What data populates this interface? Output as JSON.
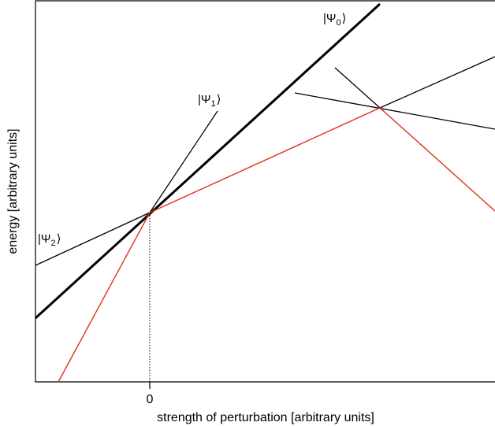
{
  "xlabel": "strength of perturbation [arbitrary units]",
  "ylabel": "energy [arbitrary units]",
  "x_tick": "0",
  "states": {
    "psi0": {
      "label_left": "|Ψ",
      "subscript": "0",
      "label_right": "⟩"
    },
    "psi1": {
      "label_left": "|Ψ",
      "subscript": "1",
      "label_right": "⟩"
    },
    "psi2": {
      "label_left": "|Ψ",
      "subscript": "2",
      "label_right": "⟩"
    }
  },
  "colors": {
    "line": "#000000",
    "ground_state": "#e0301e",
    "frame": "#000000"
  }
}
